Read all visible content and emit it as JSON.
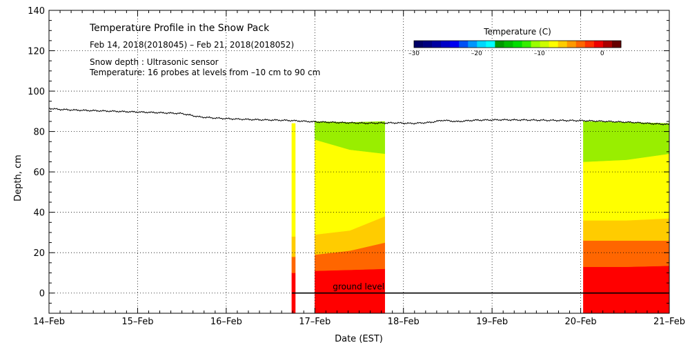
{
  "chart_data": {
    "type": "heatmap",
    "title": "Temperature Profile in the Snow Pack",
    "date_range": "Feb 14, 2018(2018045) – Feb 21, 2018(2018052)",
    "notes": [
      "Snow depth : Ultrasonic sensor",
      "Temperature: 16 probes at levels from –10 cm to 90 cm"
    ],
    "xlabel": "Date (EST)",
    "ylabel": "Depth, cm",
    "x_ticks": [
      "14–Feb",
      "15–Feb",
      "16–Feb",
      "17–Feb",
      "18–Feb",
      "19–Feb",
      "20–Feb",
      "21–Feb"
    ],
    "xlim": [
      0,
      7
    ],
    "ylim": [
      -10,
      140
    ],
    "y_ticks": [
      0,
      20,
      40,
      60,
      80,
      100,
      120,
      140
    ],
    "ground_label": "ground level",
    "ground_level_cm": 0,
    "colorbar": {
      "title": "Temperature (C)",
      "min": -30,
      "max": 3,
      "tick_values": [
        -30,
        -20,
        -10,
        0
      ],
      "tick_labels": [
        "–30",
        "–20",
        "–10",
        "0"
      ],
      "colors": [
        "#000066",
        "#00007f",
        "#0000a0",
        "#0000c8",
        "#0000f0",
        "#0050f5",
        "#0096ff",
        "#00d8ff",
        "#00ffff",
        "#009900",
        "#00bb00",
        "#00dd00",
        "#33ee00",
        "#99ff00",
        "#ccff00",
        "#ffff00",
        "#ffcc00",
        "#ff9900",
        "#ff6600",
        "#ff3300",
        "#ee0000",
        "#aa0000",
        "#660000"
      ]
    },
    "snow_depth": {
      "x": [
        0,
        0.1,
        0.3,
        0.6,
        0.9,
        1.2,
        1.5,
        1.7,
        1.9,
        2.1,
        2.3,
        2.5,
        2.7,
        3.0,
        3.3,
        3.6,
        3.9,
        4.1,
        4.3,
        4.45,
        4.6,
        4.8,
        5.1,
        5.4,
        5.7,
        6.0,
        6.3,
        6.6,
        6.8,
        7.0
      ],
      "y": [
        91.5,
        91.0,
        90.6,
        90.2,
        89.8,
        89.4,
        88.9,
        87.2,
        86.6,
        86.2,
        85.9,
        85.7,
        85.5,
        84.8,
        84.4,
        84.1,
        84.3,
        84.0,
        84.5,
        85.6,
        84.9,
        85.6,
        85.8,
        85.7,
        85.5,
        85.4,
        85.0,
        84.5,
        83.9,
        83.5
      ]
    },
    "segments": [
      {
        "x_start": 2.74,
        "x_end": 2.78,
        "bands": [
          {
            "color": "#ff0000",
            "top": [
              10,
              10
            ]
          },
          {
            "color": "#ff6600",
            "top": [
              18,
              18
            ]
          },
          {
            "color": "#ffcc00",
            "top": [
              28,
              28
            ]
          },
          {
            "color": "#ffff00",
            "top": [
              84,
              84
            ]
          }
        ]
      },
      {
        "x_start": 3.0,
        "x_end": 3.79,
        "bands": [
          {
            "color": "#ff0000",
            "top": [
              11,
              11.5,
              12
            ]
          },
          {
            "color": "#ff6600",
            "top": [
              19,
              21,
              25
            ]
          },
          {
            "color": "#ffcc00",
            "top": [
              29,
              31,
              38
            ]
          },
          {
            "color": "#ffff00",
            "top": [
              76,
              71,
              69
            ]
          },
          {
            "color": "#99ee00",
            "top": [
              85,
              84.5,
              85
            ]
          }
        ]
      },
      {
        "x_start": 6.03,
        "x_end": 7.0,
        "bands": [
          {
            "color": "#ff0000",
            "top": [
              13,
              13,
              13.5
            ]
          },
          {
            "color": "#ff6600",
            "top": [
              26,
              26,
              26
            ]
          },
          {
            "color": "#ffcc00",
            "top": [
              36,
              36,
              37
            ]
          },
          {
            "color": "#ffff00",
            "top": [
              65,
              66,
              69
            ]
          },
          {
            "color": "#99ee00",
            "top": [
              85,
              84.5,
              84
            ]
          }
        ]
      }
    ]
  }
}
